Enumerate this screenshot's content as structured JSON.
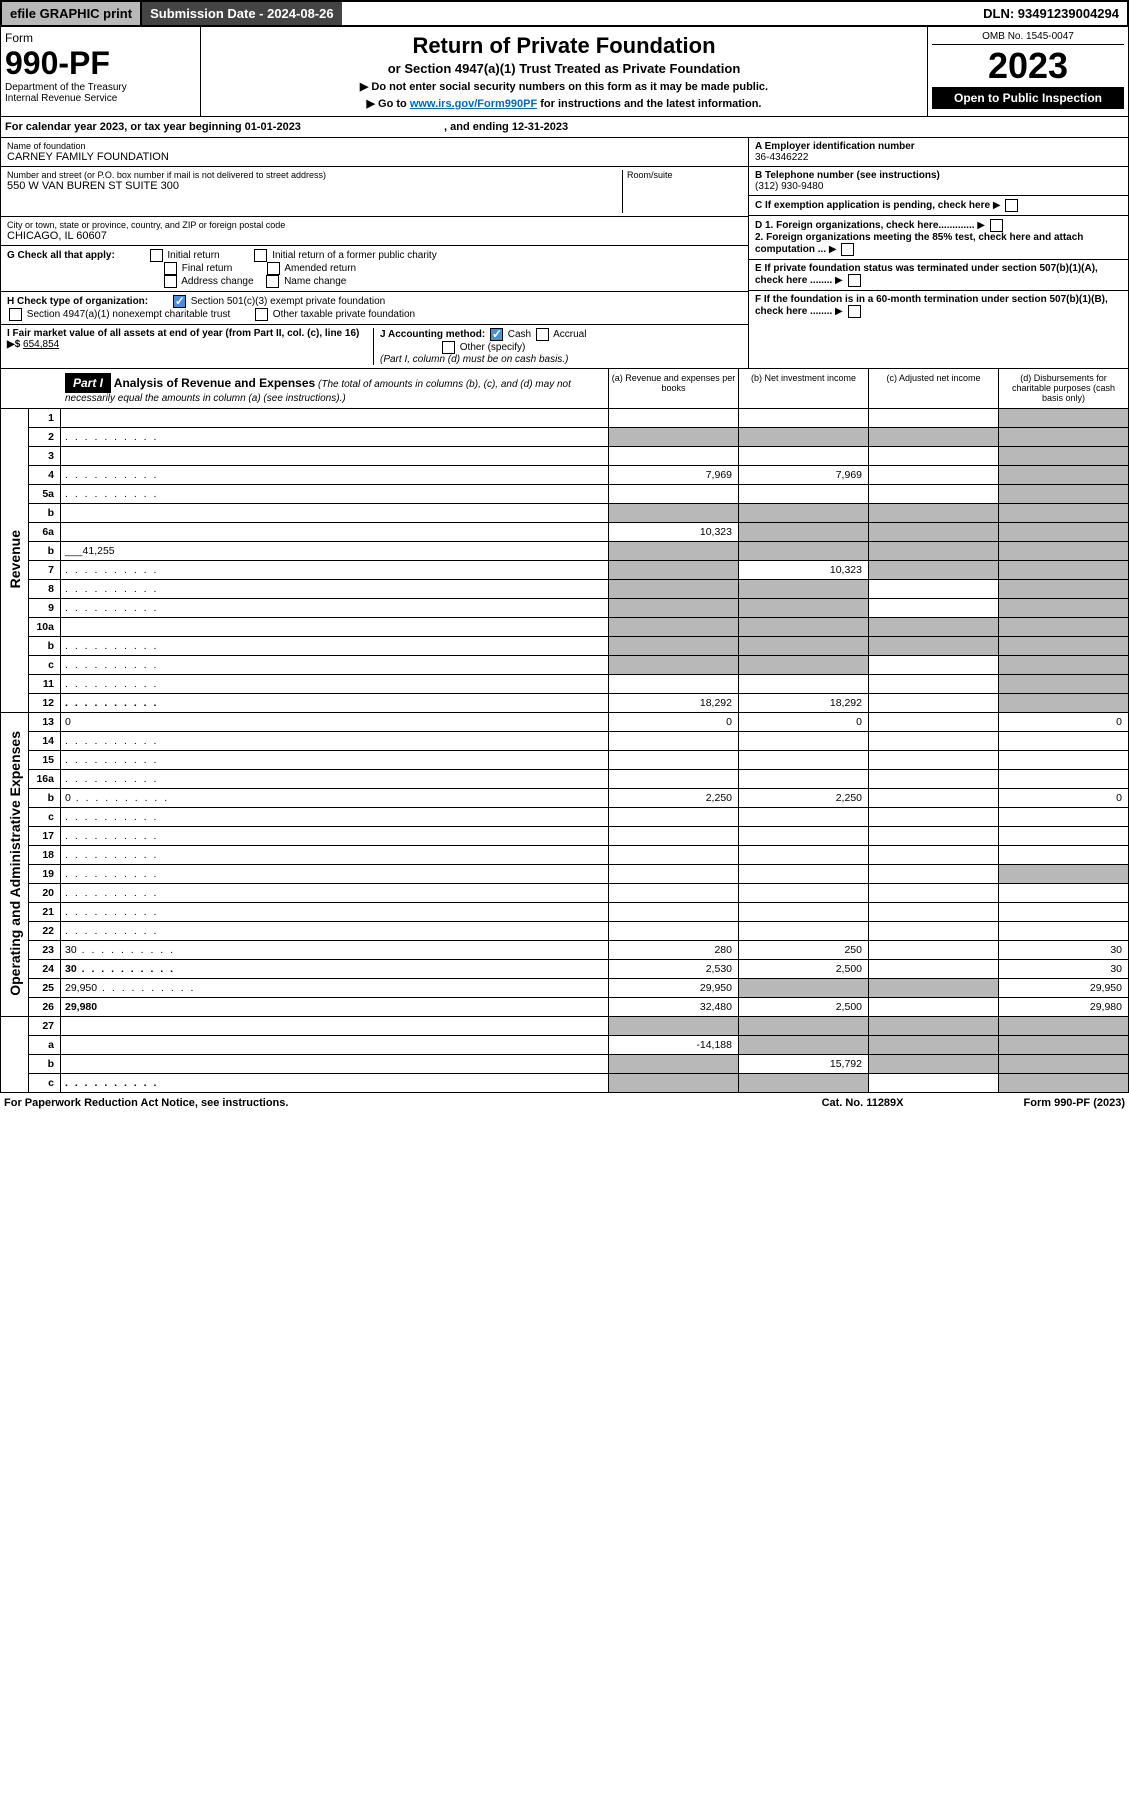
{
  "topbar": {
    "efile": "efile GRAPHIC print",
    "submission": "Submission Date - 2024-08-26",
    "dln": "DLN: 93491239004294"
  },
  "header": {
    "form_label": "Form",
    "form_number": "990-PF",
    "dept": "Department of the Treasury",
    "irs": "Internal Revenue Service",
    "title": "Return of Private Foundation",
    "subtitle": "or Section 4947(a)(1) Trust Treated as Private Foundation",
    "warn1": "▶ Do not enter social security numbers on this form as it may be made public.",
    "warn2_pre": "▶ Go to ",
    "warn2_link": "www.irs.gov/Form990PF",
    "warn2_post": " for instructions and the latest information.",
    "omb": "OMB No. 1545-0047",
    "year": "2023",
    "inspect": "Open to Public Inspection"
  },
  "calendar": {
    "pre": "For calendar year 2023, or tax year beginning ",
    "begin": "01-01-2023",
    "mid": " , and ending ",
    "end": "12-31-2023"
  },
  "ident": {
    "name_lbl": "Name of foundation",
    "name": "CARNEY FAMILY FOUNDATION",
    "addr_lbl": "Number and street (or P.O. box number if mail is not delivered to street address)",
    "addr": "550 W VAN BUREN ST SUITE 300",
    "room_lbl": "Room/suite",
    "city_lbl": "City or town, state or province, country, and ZIP or foreign postal code",
    "city": "CHICAGO, IL  60607",
    "a_lbl": "A Employer identification number",
    "a_val": "36-4346222",
    "b_lbl": "B Telephone number (see instructions)",
    "b_val": "(312) 930-9480",
    "c_lbl": "C If exemption application is pending, check here",
    "d1": "D 1. Foreign organizations, check here.............",
    "d2": "2. Foreign organizations meeting the 85% test, check here and attach computation ...",
    "e": "E  If private foundation status was terminated under section 507(b)(1)(A), check here ........",
    "f": "F  If the foundation is in a 60-month termination under section 507(b)(1)(B), check here ........"
  },
  "g": {
    "lbl": "G Check all that apply:",
    "opts": [
      "Initial return",
      "Final return",
      "Address change",
      "Initial return of a former public charity",
      "Amended return",
      "Name change"
    ]
  },
  "h": {
    "lbl": "H Check type of organization:",
    "o1": "Section 501(c)(3) exempt private foundation",
    "o2": "Section 4947(a)(1) nonexempt charitable trust",
    "o3": "Other taxable private foundation"
  },
  "i": {
    "lbl": "I Fair market value of all assets at end of year (from Part II, col. (c), line 16) ▶$",
    "val": "654,854"
  },
  "j": {
    "lbl": "J Accounting method:",
    "cash": "Cash",
    "accrual": "Accrual",
    "other": "Other (specify)",
    "note": "(Part I, column (d) must be on cash basis.)"
  },
  "part1": {
    "label": "Part I",
    "title": "Analysis of Revenue and Expenses",
    "note": "(The total of amounts in columns (b), (c), and (d) may not necessarily equal the amounts in column (a) (see instructions).)",
    "col_a": "(a)    Revenue and expenses per books",
    "col_b": "(b)    Net investment income",
    "col_c": "(c)    Adjusted net income",
    "col_d": "(d)    Disbursements for charitable purposes (cash basis only)"
  },
  "sections": {
    "revenue": "Revenue",
    "expenses": "Operating and Administrative Expenses"
  },
  "rows": [
    {
      "n": "1",
      "d": "",
      "a": "",
      "b": "",
      "c": "",
      "sd": true
    },
    {
      "n": "2",
      "d": "",
      "a": "",
      "b": "",
      "c": "",
      "sa": true,
      "sb": true,
      "sc": true,
      "sd": true,
      "dots": true
    },
    {
      "n": "3",
      "d": "",
      "a": "",
      "b": "",
      "c": "",
      "sd": true
    },
    {
      "n": "4",
      "d": "",
      "a": "7,969",
      "b": "7,969",
      "c": "",
      "sd": true,
      "dots": true
    },
    {
      "n": "5a",
      "d": "",
      "a": "",
      "b": "",
      "c": "",
      "sd": true,
      "dots": true
    },
    {
      "n": "b",
      "d": "",
      "a": "",
      "b": "",
      "c": "",
      "sa": true,
      "sb": true,
      "sc": true,
      "sd": true,
      "inline": true
    },
    {
      "n": "6a",
      "d": "",
      "a": "10,323",
      "b": "",
      "c": "",
      "sb": true,
      "sc": true,
      "sd": true
    },
    {
      "n": "b",
      "d": "",
      "a": "",
      "b": "",
      "c": "",
      "sa": true,
      "sb": true,
      "sc": true,
      "sd": true,
      "inline": true,
      "inlineval": "41,255"
    },
    {
      "n": "7",
      "d": "",
      "a": "",
      "b": "10,323",
      "c": "",
      "sa": true,
      "sc": true,
      "sd": true,
      "dots": true
    },
    {
      "n": "8",
      "d": "",
      "a": "",
      "b": "",
      "c": "",
      "sa": true,
      "sb": true,
      "sd": true,
      "dots": true
    },
    {
      "n": "9",
      "d": "",
      "a": "",
      "b": "",
      "c": "",
      "sa": true,
      "sb": true,
      "sd": true,
      "dots": true
    },
    {
      "n": "10a",
      "d": "",
      "a": "",
      "b": "",
      "c": "",
      "sa": true,
      "sb": true,
      "sc": true,
      "sd": true,
      "inline": true
    },
    {
      "n": "b",
      "d": "",
      "a": "",
      "b": "",
      "c": "",
      "sa": true,
      "sb": true,
      "sc": true,
      "sd": true,
      "inline": true,
      "dots": true
    },
    {
      "n": "c",
      "d": "",
      "a": "",
      "b": "",
      "c": "",
      "sa": true,
      "sb": true,
      "sd": true,
      "dots": true
    },
    {
      "n": "11",
      "d": "",
      "a": "",
      "b": "",
      "c": "",
      "sd": true,
      "dots": true
    },
    {
      "n": "12",
      "d": "",
      "a": "18,292",
      "b": "18,292",
      "c": "",
      "sd": true,
      "bold": true,
      "dots": true
    }
  ],
  "exp_rows": [
    {
      "n": "13",
      "d": "0",
      "a": "0",
      "b": "0",
      "c": ""
    },
    {
      "n": "14",
      "d": "",
      "a": "",
      "b": "",
      "c": "",
      "dots": true
    },
    {
      "n": "15",
      "d": "",
      "a": "",
      "b": "",
      "c": "",
      "dots": true
    },
    {
      "n": "16a",
      "d": "",
      "a": "",
      "b": "",
      "c": "",
      "dots": true
    },
    {
      "n": "b",
      "d": "0",
      "a": "2,250",
      "b": "2,250",
      "c": "",
      "dots": true
    },
    {
      "n": "c",
      "d": "",
      "a": "",
      "b": "",
      "c": "",
      "dots": true
    },
    {
      "n": "17",
      "d": "",
      "a": "",
      "b": "",
      "c": "",
      "dots": true
    },
    {
      "n": "18",
      "d": "",
      "a": "",
      "b": "",
      "c": "",
      "dots": true
    },
    {
      "n": "19",
      "d": "",
      "a": "",
      "b": "",
      "c": "",
      "sd": true,
      "dots": true
    },
    {
      "n": "20",
      "d": "",
      "a": "",
      "b": "",
      "c": "",
      "dots": true
    },
    {
      "n": "21",
      "d": "",
      "a": "",
      "b": "",
      "c": "",
      "dots": true
    },
    {
      "n": "22",
      "d": "",
      "a": "",
      "b": "",
      "c": "",
      "dots": true
    },
    {
      "n": "23",
      "d": "30",
      "a": "280",
      "b": "250",
      "c": "",
      "dots": true
    },
    {
      "n": "24",
      "d": "30",
      "a": "2,530",
      "b": "2,500",
      "c": "",
      "bold": true,
      "dots": true
    },
    {
      "n": "25",
      "d": "29,950",
      "a": "29,950",
      "b": "",
      "c": "",
      "sb": true,
      "sc": true,
      "dots": true
    },
    {
      "n": "26",
      "d": "29,980",
      "a": "32,480",
      "b": "2,500",
      "c": "",
      "bold": true
    }
  ],
  "bottom_rows": [
    {
      "n": "27",
      "d": "",
      "a": "",
      "b": "",
      "c": "",
      "sa": true,
      "sb": true,
      "sc": true,
      "sd": true
    },
    {
      "n": "a",
      "d": "",
      "a": "-14,188",
      "b": "",
      "c": "",
      "sb": true,
      "sc": true,
      "sd": true,
      "bold": true
    },
    {
      "n": "b",
      "d": "",
      "a": "",
      "b": "15,792",
      "c": "",
      "sa": true,
      "sc": true,
      "sd": true,
      "bold": true
    },
    {
      "n": "c",
      "d": "",
      "a": "",
      "b": "",
      "c": "",
      "sa": true,
      "sb": true,
      "sd": true,
      "bold": true,
      "dots": true
    }
  ],
  "footer": {
    "left": "For Paperwork Reduction Act Notice, see instructions.",
    "mid": "Cat. No. 11289X",
    "right": "Form 990-PF (2023)"
  }
}
